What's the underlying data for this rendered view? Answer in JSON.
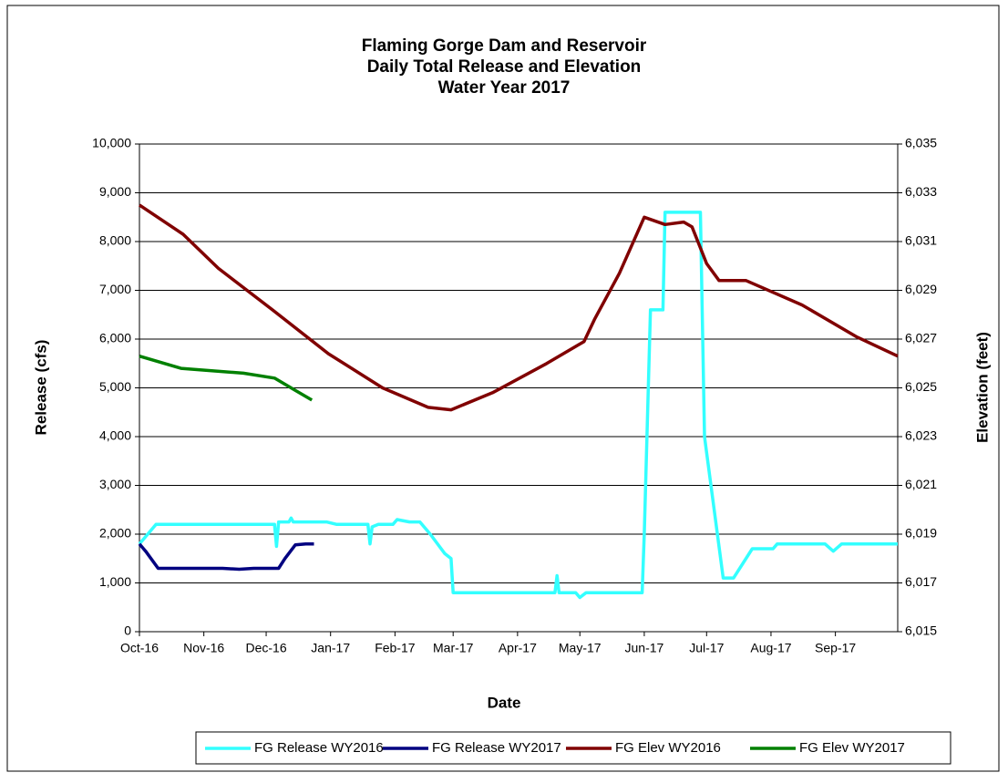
{
  "chart_data": {
    "type": "line",
    "title": "Flaming Gorge Dam and Reservoir",
    "subtitle": [
      "Daily Total Release and Elevation",
      "Water Year 2017"
    ],
    "x_label": "Date",
    "y_label": "Release (cfs)",
    "y2_label": "Elevation (feet)",
    "xlim": [
      0,
      365
    ],
    "xticks": [
      {
        "value": 0,
        "label": "Oct-16"
      },
      {
        "value": 31,
        "label": "Nov-16"
      },
      {
        "value": 61,
        "label": "Dec-16"
      },
      {
        "value": 92,
        "label": "Jan-17"
      },
      {
        "value": 123,
        "label": "Feb-17"
      },
      {
        "value": 151,
        "label": "Mar-17"
      },
      {
        "value": 182,
        "label": "Apr-17"
      },
      {
        "value": 212,
        "label": "May-17"
      },
      {
        "value": 243,
        "label": "Jun-17"
      },
      {
        "value": 273,
        "label": "Jul-17"
      },
      {
        "value": 304,
        "label": "Aug-17"
      },
      {
        "value": 335,
        "label": "Sep-17"
      }
    ],
    "ylim": [
      0,
      10000
    ],
    "yticks": [
      0,
      {
        "value": 1000,
        "label": "1,000"
      },
      {
        "value": 2000,
        "label": "2,000"
      },
      {
        "value": 3000,
        "label": "3,000"
      },
      {
        "value": 4000,
        "label": "4,000"
      },
      {
        "value": 5000,
        "label": "5,000"
      },
      {
        "value": 6000,
        "label": "6,000"
      },
      {
        "value": 7000,
        "label": "7,000"
      },
      {
        "value": 8000,
        "label": "8,000"
      },
      {
        "value": 9000,
        "label": "9,000"
      },
      {
        "value": 10000,
        "label": "10,000"
      }
    ],
    "y2lim": [
      6015,
      6035
    ],
    "y2ticks": [
      {
        "value": 6015,
        "label": "6,015"
      },
      {
        "value": 6017,
        "label": "6,017"
      },
      {
        "value": 6019,
        "label": "6,019"
      },
      {
        "value": 6021,
        "label": "6,021"
      },
      {
        "value": 6023,
        "label": "6,023"
      },
      {
        "value": 6025,
        "label": "6,025"
      },
      {
        "value": 6027,
        "label": "6,027"
      },
      {
        "value": 6029,
        "label": "6,029"
      },
      {
        "value": 6031,
        "label": "6,031"
      },
      {
        "value": 6033,
        "label": "6,033"
      },
      {
        "value": 6035,
        "label": "6,035"
      }
    ],
    "grid": true,
    "legend": "bottom",
    "series": [
      {
        "name": "FG Release WY2016",
        "color": "#33ffff",
        "x": [
          0,
          8,
          30,
          60,
          65,
          66,
          67,
          72,
          73,
          74,
          90,
          95,
          110,
          111,
          112,
          115,
          122,
          124,
          130,
          135,
          140,
          147,
          150,
          151,
          200,
          201,
          202,
          210,
          212,
          215,
          242,
          243,
          246,
          252,
          253,
          270,
          272,
          281,
          286,
          295,
          305,
          307,
          330,
          334,
          338,
          365
        ],
        "values": [
          1800,
          2200,
          2200,
          2200,
          2200,
          1750,
          2250,
          2250,
          2330,
          2250,
          2250,
          2200,
          2200,
          1800,
          2150,
          2200,
          2200,
          2300,
          2250,
          2250,
          2000,
          1600,
          1500,
          800,
          800,
          1150,
          800,
          800,
          700,
          800,
          800,
          2000,
          6600,
          6600,
          8600,
          8600,
          4000,
          1100,
          1100,
          1700,
          1700,
          1800,
          1800,
          1650,
          1800,
          1800
        ]
      },
      {
        "name": "FG Release WY2017",
        "color": "#000080",
        "x": [
          0,
          3,
          9,
          40,
          48,
          55,
          67,
          70,
          75,
          80,
          84
        ],
        "values": [
          1800,
          1650,
          1300,
          1300,
          1280,
          1300,
          1300,
          1500,
          1780,
          1800,
          1800
        ]
      },
      {
        "name": "FG Elev WY2016",
        "color": "#800000",
        "axis": "y2",
        "x": [
          0,
          21,
          38,
          64,
          91,
          117,
          139,
          150,
          170,
          196,
          214,
          219,
          231,
          243,
          253,
          262,
          266,
          273,
          279,
          292,
          319,
          345,
          365
        ],
        "values": [
          6032.5,
          6031.3,
          6029.9,
          6028.2,
          6026.4,
          6025.0,
          6024.2,
          6024.1,
          6024.8,
          6026.0,
          6026.9,
          6027.8,
          6029.7,
          6032.0,
          6031.7,
          6031.8,
          6031.6,
          6030.1,
          6029.4,
          6029.4,
          6028.4,
          6027.1,
          6026.3
        ]
      },
      {
        "name": "FG Elev WY2017",
        "color": "#008000",
        "axis": "y2",
        "x": [
          0,
          20,
          50,
          65,
          75,
          83
        ],
        "values": [
          6026.3,
          6025.8,
          6025.6,
          6025.4,
          6024.9,
          6024.5
        ]
      }
    ]
  }
}
